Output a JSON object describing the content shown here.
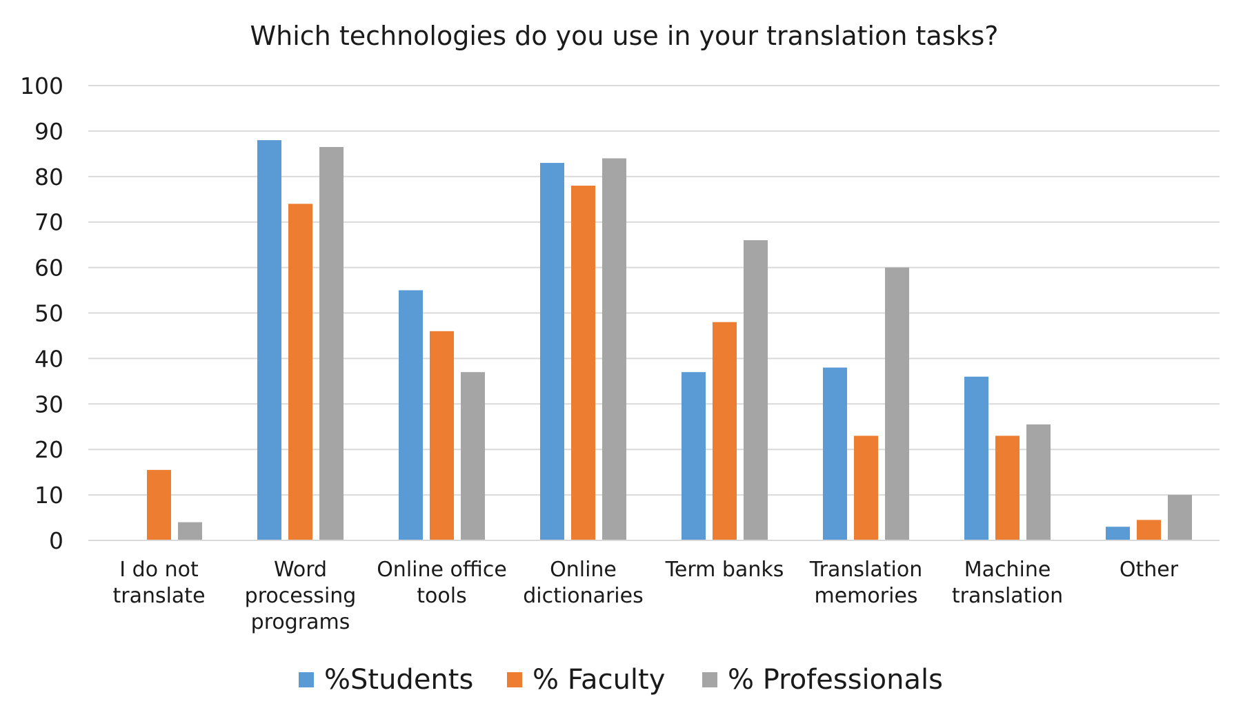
{
  "chart_data": {
    "type": "bar",
    "title": "Which technologies do you use in your translation tasks?",
    "xlabel": "",
    "ylabel": "",
    "ylim": [
      0,
      100
    ],
    "yticks": [
      "0",
      "10",
      "20",
      "30",
      "40",
      "50",
      "60",
      "70",
      "80",
      "90",
      "100"
    ],
    "grid": true,
    "legend_position": "bottom",
    "categories": [
      [
        "I do not",
        "translate"
      ],
      [
        "Word",
        "processing",
        "programs"
      ],
      [
        "Online office",
        "tools"
      ],
      [
        "Online",
        "dictionaries"
      ],
      [
        "Term banks"
      ],
      [
        "Translation",
        "memories"
      ],
      [
        "Machine",
        "translation"
      ],
      [
        "Other"
      ]
    ],
    "series": [
      {
        "name": "%Students",
        "color": "#5b9bd5",
        "values": [
          0,
          88,
          55,
          83,
          37,
          38,
          36,
          3
        ]
      },
      {
        "name": "% Faculty",
        "color": "#ed7d31",
        "values": [
          15.5,
          74,
          46,
          78,
          48,
          23,
          23,
          4.5
        ]
      },
      {
        "name": "% Professionals",
        "color": "#a5a5a5",
        "values": [
          4,
          86.5,
          37,
          84,
          66,
          60,
          25.5,
          10
        ]
      }
    ]
  }
}
